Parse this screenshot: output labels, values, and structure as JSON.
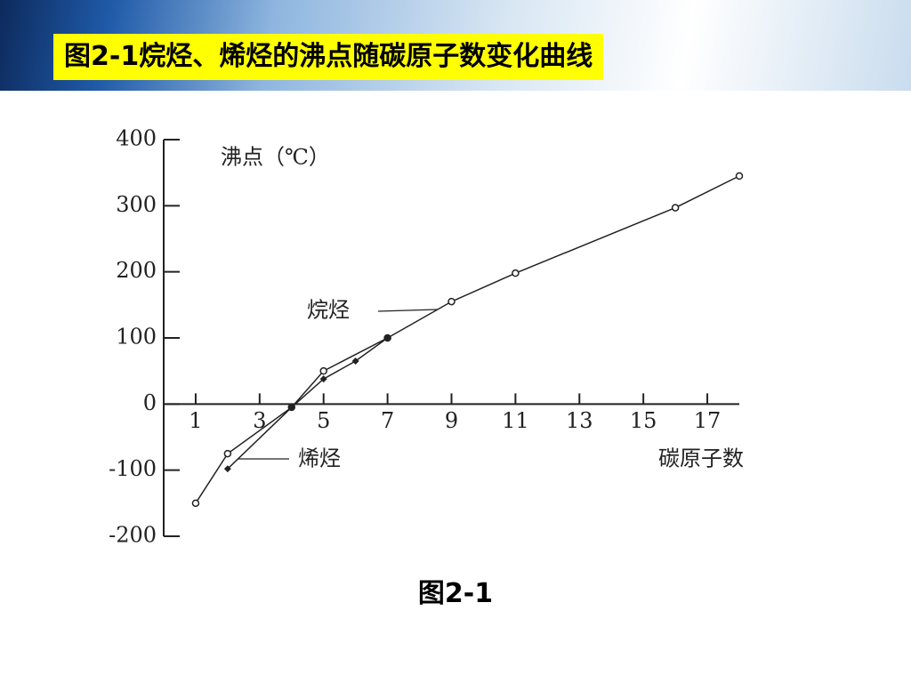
{
  "title": "图2-1烷烃、烯烃的沸点随碳原子数变化曲线",
  "caption": "图2-1",
  "chart_data": {
    "type": "line",
    "y_label": "沸点（℃）",
    "x_label": "碳原子数",
    "xlim": [
      0,
      18
    ],
    "xticks": [
      1,
      3,
      5,
      7,
      9,
      11,
      13,
      15,
      17
    ],
    "ylim": [
      -200,
      400
    ],
    "yticks": [
      -200,
      -100,
      0,
      100,
      200,
      300,
      400
    ],
    "series": [
      {
        "name": "烷烃",
        "color": "#222222",
        "marker": "circle",
        "x": [
          1,
          2,
          4,
          5,
          7,
          9,
          11,
          16,
          18
        ],
        "values": [
          -150,
          -75,
          -5,
          50,
          100,
          155,
          198,
          297,
          345
        ]
      },
      {
        "name": "烯烃",
        "color": "#222222",
        "marker": "diamond",
        "x": [
          2,
          4,
          5,
          6,
          7
        ],
        "values": [
          -98,
          -5,
          38,
          65,
          100
        ]
      }
    ]
  }
}
